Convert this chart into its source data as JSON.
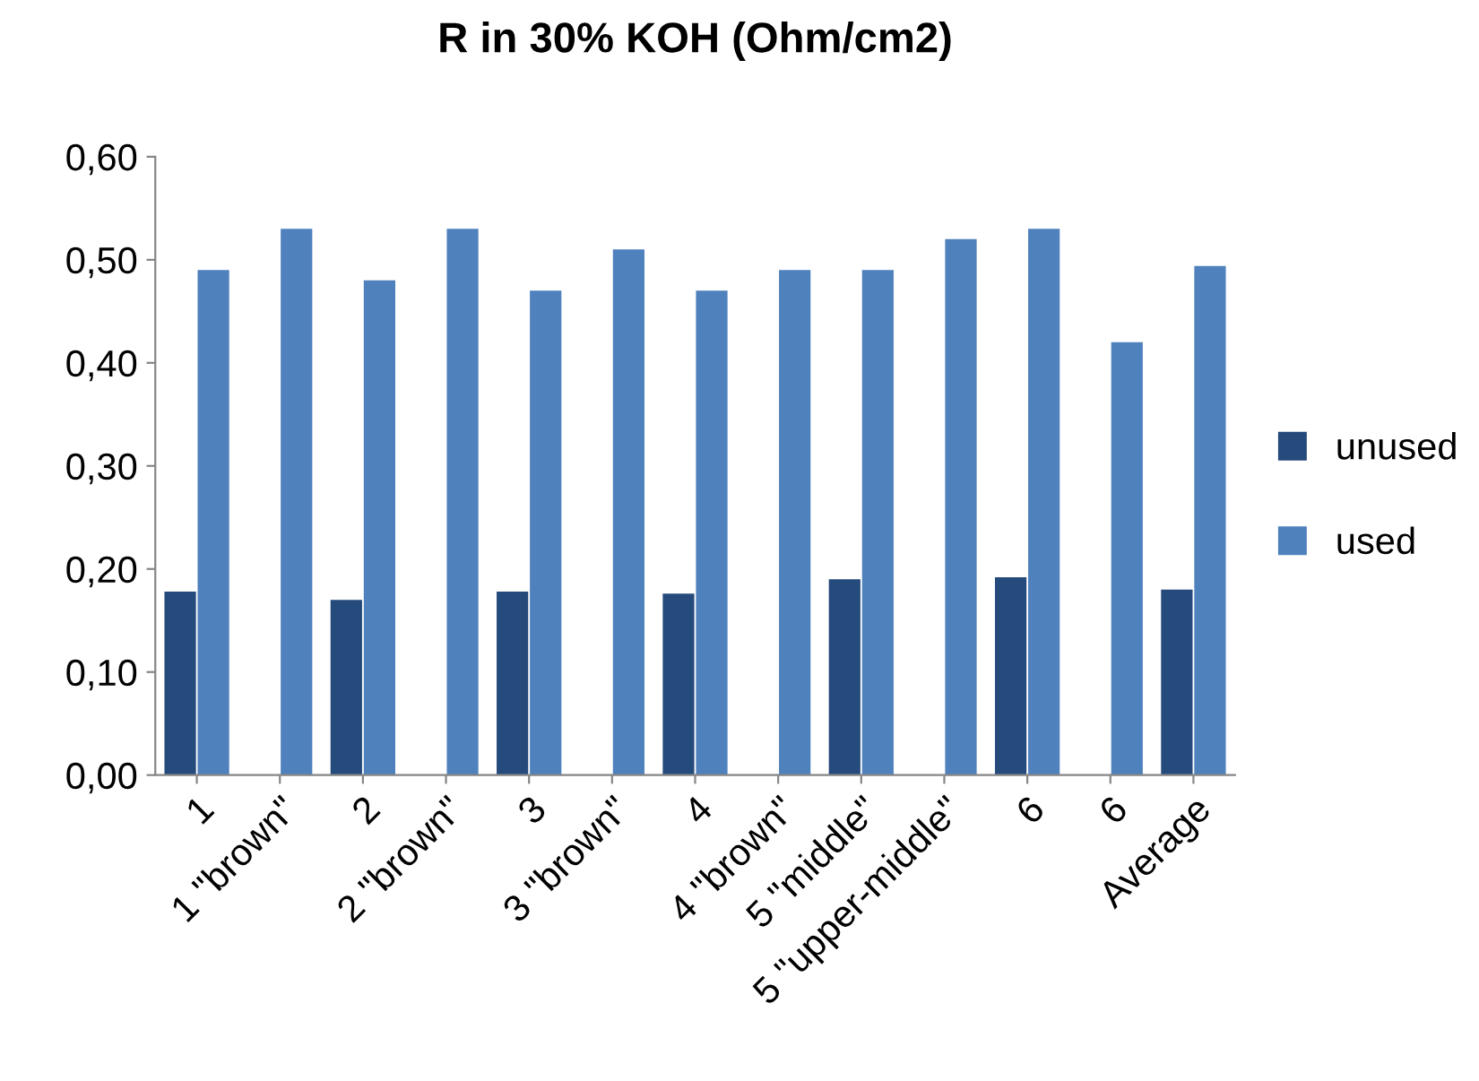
{
  "chart_data": {
    "type": "bar",
    "title": "R in 30% KOH (Ohm/cm2)",
    "categories": [
      "1",
      "1 \"brown\"",
      "2",
      "2 \"brown\"",
      "3",
      "3 \"brown\"",
      "4",
      "4 \"brown\"",
      "5 \"middle\"",
      "5 \"upper-middle\"",
      "6",
      "6",
      "Average"
    ],
    "series": [
      {
        "name": "unused",
        "color": "#254a7c",
        "values": [
          0.178,
          null,
          0.17,
          null,
          0.178,
          null,
          0.176,
          null,
          0.19,
          null,
          0.192,
          null,
          0.18
        ]
      },
      {
        "name": "used",
        "color": "#4f81bd",
        "values": [
          0.49,
          0.53,
          0.48,
          0.53,
          0.47,
          0.51,
          0.47,
          0.49,
          0.49,
          0.52,
          0.53,
          0.42,
          0.494
        ]
      }
    ],
    "ylim": [
      0,
      0.6
    ],
    "yticks": [
      {
        "value": 0,
        "label": "0,00"
      },
      {
        "value": 0.1,
        "label": "0,10"
      },
      {
        "value": 0.2,
        "label": "0,20"
      },
      {
        "value": 0.3,
        "label": "0,30"
      },
      {
        "value": 0.4,
        "label": "0,40"
      },
      {
        "value": 0.5,
        "label": "0,50"
      },
      {
        "value": 0.6,
        "label": "0,60"
      }
    ],
    "legend": "right",
    "grid": false
  }
}
